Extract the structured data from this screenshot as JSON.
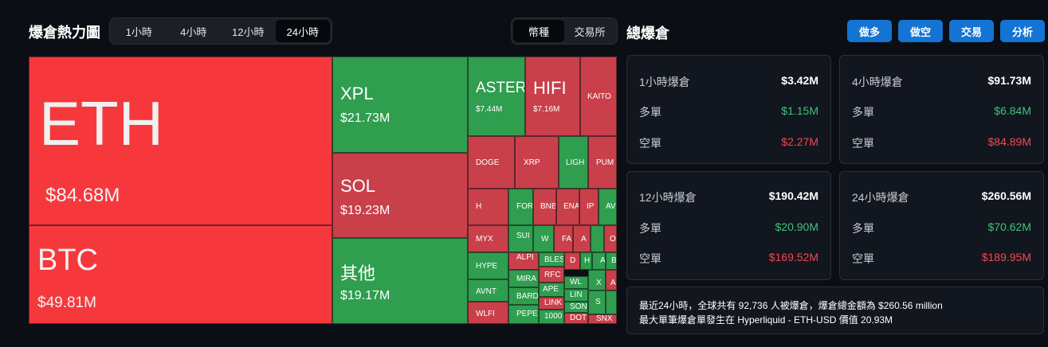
{
  "heatmap": {
    "title": "爆倉熱力圖",
    "time_tabs": [
      "1小時",
      "4小時",
      "12小時",
      "24小時"
    ],
    "active_time_tab": "24小時",
    "type_tabs": [
      "幣種",
      "交易所"
    ],
    "active_type_tab": "幣種",
    "cells": {
      "eth": {
        "symbol": "ETH",
        "value": "$84.68M"
      },
      "btc": {
        "symbol": "BTC",
        "value": "$49.81M"
      },
      "xpl": {
        "symbol": "XPL",
        "value": "$21.73M"
      },
      "sol": {
        "symbol": "SOL",
        "value": "$19.23M"
      },
      "other": {
        "symbol": "其他",
        "value": "$19.17M"
      },
      "aster": {
        "symbol": "ASTER",
        "value": "$7.44M"
      },
      "hifi": {
        "symbol": "HIFI",
        "value": "$7.16M"
      },
      "kaito": {
        "symbol": "KAITO"
      },
      "doge": {
        "symbol": "DOGE"
      },
      "xrp": {
        "symbol": "XRP"
      },
      "ligh": {
        "symbol": "LIGH"
      },
      "pum": {
        "symbol": "PUM"
      },
      "h": {
        "symbol": "H"
      },
      "for": {
        "symbol": "FOR"
      },
      "bnb": {
        "symbol": "BNB"
      },
      "ena": {
        "symbol": "ENA"
      },
      "ip": {
        "symbol": "IP"
      },
      "av": {
        "symbol": "AV"
      },
      "myx": {
        "symbol": "MYX"
      },
      "sui": {
        "symbol": "SUI"
      },
      "w": {
        "symbol": "W"
      },
      "fa": {
        "symbol": "FA"
      },
      "a1": {
        "symbol": "A"
      },
      "o": {
        "symbol": "O"
      },
      "hype": {
        "symbol": "HYPE"
      },
      "alpi": {
        "symbol": "ALPI"
      },
      "bles": {
        "symbol": "BLES"
      },
      "d": {
        "symbol": "D"
      },
      "h2": {
        "symbol": "H"
      },
      "a2": {
        "symbol": "A"
      },
      "b": {
        "symbol": "B"
      },
      "mira": {
        "symbol": "MIRA"
      },
      "rfc": {
        "symbol": "RFC"
      },
      "wl": {
        "symbol": "WL"
      },
      "x": {
        "symbol": "X"
      },
      "a3": {
        "symbol": "A"
      },
      "avnt": {
        "symbol": "AVNT"
      },
      "bard": {
        "symbol": "BARD"
      },
      "ape": {
        "symbol": "APE"
      },
      "lin": {
        "symbol": "LIN"
      },
      "s1": {
        "symbol": "S"
      },
      "link": {
        "symbol": "LINK"
      },
      "son": {
        "symbol": "SON"
      },
      "wlfi": {
        "symbol": "WLFI"
      },
      "pepe": {
        "symbol": "PEPE"
      },
      "k1000": {
        "symbol": "1000"
      },
      "dot": {
        "symbol": "DOT"
      },
      "snx": {
        "symbol": "SNX"
      }
    }
  },
  "liquidations": {
    "title": "總爆倉",
    "buttons": [
      "做多",
      "做空",
      "交易",
      "分析"
    ],
    "long_label": "多單",
    "short_label": "空單",
    "cards": [
      {
        "label": "1小時爆倉",
        "total": "$3.42M",
        "long": "$1.15M",
        "short": "$2.27M"
      },
      {
        "label": "4小時爆倉",
        "total": "$91.73M",
        "long": "$6.84M",
        "short": "$84.89M"
      },
      {
        "label": "12小時爆倉",
        "total": "$190.42M",
        "long": "$20.90M",
        "short": "$169.52M"
      },
      {
        "label": "24小時爆倉",
        "total": "$260.56M",
        "long": "$70.62M",
        "short": "$189.95M"
      }
    ],
    "summary_line1": "最近24小時，全球共有 92,736 人被爆倉，爆倉總金額為 $260.56 million",
    "summary_line2": "最大單筆爆倉單發生在 Hyperliquid - ETH-USD 價值 20.93M"
  },
  "colors": {
    "red": "#f6383d",
    "dark_red": "#c9404a",
    "green": "#2f9e4f",
    "button_blue": "#1474d4",
    "long_green": "#3fc27a",
    "short_red": "#f6464f"
  }
}
